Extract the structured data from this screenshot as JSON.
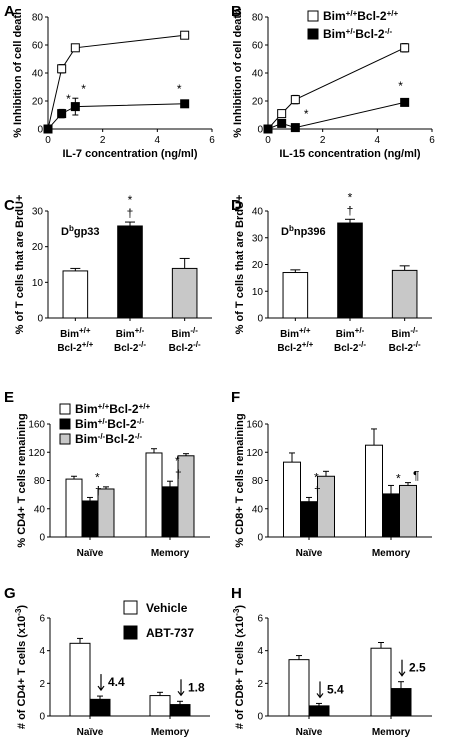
{
  "chart_data": [
    {
      "panel": "A",
      "type": "line",
      "xlabel": "IL-7 concentration (ng/ml)",
      "ylabel": "% Inhibition of cell death",
      "xlim": [
        0,
        6
      ],
      "ylim": [
        0,
        80
      ],
      "xticks": [
        0,
        2,
        4,
        6
      ],
      "yticks": [
        0,
        20,
        40,
        60,
        80
      ],
      "series": [
        {
          "fill": "#ffffff",
          "x": [
            0,
            0.5,
            1,
            5
          ],
          "y": [
            0,
            43,
            58,
            67
          ],
          "err": [
            0,
            3,
            2,
            2
          ]
        },
        {
          "fill": "#000000",
          "x": [
            0,
            0.5,
            1,
            5
          ],
          "y": [
            0,
            11,
            16,
            18
          ],
          "err": [
            0,
            3,
            6,
            2
          ]
        }
      ],
      "annotations": [
        {
          "text": "*",
          "x": 0.75,
          "y": 23
        },
        {
          "text": "*",
          "x": 1.3,
          "y": 30
        },
        {
          "text": "*",
          "x": 4.8,
          "y": 30
        }
      ]
    },
    {
      "panel": "B",
      "type": "line",
      "xlabel": "IL-15 concentration (ng/ml)",
      "ylabel": "% Inhibition of cell death",
      "xlim": [
        0,
        6
      ],
      "ylim": [
        0,
        80
      ],
      "xticks": [
        0,
        2,
        4,
        6
      ],
      "yticks": [
        0,
        20,
        40,
        60,
        80
      ],
      "legend": [
        "Bim+/+Bcl-2+/+",
        "Bim+/-Bcl-2-/-"
      ],
      "legend_colors": [
        "#ffffff",
        "#000000"
      ],
      "series": [
        {
          "name": "Bim+/+Bcl-2+/+",
          "fill": "#ffffff",
          "x": [
            0,
            0.5,
            1,
            5
          ],
          "y": [
            0,
            11,
            21,
            58
          ],
          "err": [
            0,
            2,
            3,
            3
          ]
        },
        {
          "name": "Bim+/-Bcl-2-/-",
          "fill": "#000000",
          "x": [
            0,
            0.5,
            1,
            5
          ],
          "y": [
            0,
            4,
            1,
            19
          ],
          "err": [
            0,
            1,
            1,
            2
          ]
        }
      ],
      "annotations": [
        {
          "text": "*",
          "x": 1.4,
          "y": 12
        },
        {
          "text": "*",
          "x": 4.85,
          "y": 32
        }
      ]
    },
    {
      "panel": "C",
      "type": "bar",
      "inner_label": "Dbgp33",
      "ylabel": "% of T cells that are BrdU+",
      "ylim": [
        0,
        30
      ],
      "yticks": [
        0,
        10,
        20,
        30
      ],
      "categories": [
        [
          "Bim+/+",
          "Bcl-2+/+"
        ],
        [
          "Bim+/-",
          "Bcl-2-/-"
        ],
        [
          "Bim-/-",
          "Bcl-2-/-"
        ]
      ],
      "values": [
        13.2,
        25.8,
        13.9
      ],
      "errors": [
        0.7,
        1.1,
        2.8
      ],
      "colors": [
        "#ffffff",
        "#000000",
        "#c8c8c8"
      ],
      "annotations": [
        {
          "text": "*",
          "bar": 1,
          "row": 1
        },
        {
          "text": "†",
          "bar": 1,
          "row": 0
        }
      ]
    },
    {
      "panel": "D",
      "type": "bar",
      "inner_label": "Dbnp396",
      "ylabel": "% of T cells that are BrdU+",
      "ylim": [
        0,
        40
      ],
      "yticks": [
        0,
        10,
        20,
        30,
        40
      ],
      "categories": [
        [
          "Bim+/+",
          "Bcl-2+/+"
        ],
        [
          "Bim+/-",
          "Bcl-2-/-"
        ],
        [
          "Bim-/-",
          "Bcl-2-/-"
        ]
      ],
      "values": [
        17.0,
        35.5,
        17.8
      ],
      "errors": [
        1.0,
        1.4,
        1.7
      ],
      "colors": [
        "#ffffff",
        "#000000",
        "#c8c8c8"
      ],
      "annotations": [
        {
          "text": "*",
          "bar": 1,
          "row": 1
        },
        {
          "text": "†",
          "bar": 1,
          "row": 0
        }
      ]
    },
    {
      "panel": "E",
      "type": "bar",
      "ylabel": "% CD4+ T cells remaining",
      "ylim": [
        0,
        160
      ],
      "yticks": [
        0,
        40,
        80,
        120,
        160
      ],
      "categories": [
        "Naïve",
        "Memory"
      ],
      "legend": [
        "Bim+/+Bcl-2+/+",
        "Bim+/-Bcl-2-/-",
        "Bim-/-Bcl-2-/-"
      ],
      "series": [
        {
          "name": "Bim+/+Bcl-2+/+",
          "color": "#ffffff",
          "values": [
            82,
            119
          ],
          "errors": [
            4,
            6
          ]
        },
        {
          "name": "Bim+/-Bcl-2-/-",
          "color": "#000000",
          "values": [
            51,
            71
          ],
          "errors": [
            5,
            8
          ]
        },
        {
          "name": "Bim-/-Bcl-2-/-",
          "color": "#c8c8c8",
          "values": [
            68,
            115
          ],
          "errors": [
            3,
            3
          ]
        }
      ],
      "annotations": [
        {
          "text": "*",
          "group": 0,
          "series": 1,
          "row": 1
        },
        {
          "text": "†",
          "group": 0,
          "series": 1,
          "row": 0
        },
        {
          "text": "*",
          "group": 1,
          "series": 1,
          "row": 1
        },
        {
          "text": "†",
          "group": 1,
          "series": 1,
          "row": 0
        }
      ]
    },
    {
      "panel": "F",
      "type": "bar",
      "ylabel": "% CD8+ T cells remaining",
      "ylim": [
        0,
        160
      ],
      "yticks": [
        0,
        40,
        80,
        120,
        160
      ],
      "categories": [
        "Naïve",
        "Memory"
      ],
      "series": [
        {
          "color": "#ffffff",
          "values": [
            106,
            130
          ],
          "errors": [
            13,
            23
          ]
        },
        {
          "color": "#000000",
          "values": [
            50,
            61
          ],
          "errors": [
            6,
            12
          ]
        },
        {
          "color": "#c8c8c8",
          "values": [
            86,
            73
          ],
          "errors": [
            7,
            4
          ]
        }
      ],
      "annotations": [
        {
          "text": "*",
          "group": 0,
          "series": 1,
          "row": 1
        },
        {
          "text": "†",
          "group": 0,
          "series": 1,
          "row": 0
        },
        {
          "text": "*",
          "group": 1,
          "series": 1,
          "row": 0
        },
        {
          "text": "¶",
          "group": 1,
          "series": 2,
          "row": 0
        }
      ]
    },
    {
      "panel": "G",
      "type": "bar",
      "ylabel": "# of CD4+ T cells (x10-3)",
      "ylim": [
        0,
        6
      ],
      "yticks": [
        0,
        2,
        4,
        6
      ],
      "categories": [
        "Naïve",
        "Memory"
      ],
      "legend": [
        "Vehicle",
        "ABT-737"
      ],
      "series": [
        {
          "name": "Vehicle",
          "color": "#ffffff",
          "values": [
            4.45,
            1.25
          ],
          "errors": [
            0.3,
            0.2
          ]
        },
        {
          "name": "ABT-737",
          "color": "#000000",
          "values": [
            1.02,
            0.7
          ],
          "errors": [
            0.2,
            0.2
          ]
        }
      ],
      "fold_labels": [
        "4.4",
        "1.8"
      ]
    },
    {
      "panel": "H",
      "type": "bar",
      "ylabel": "# of CD8+ T cells (x10-3)",
      "ylim": [
        0,
        6
      ],
      "yticks": [
        0,
        2,
        4,
        6
      ],
      "categories": [
        "Naïve",
        "Memory"
      ],
      "series": [
        {
          "color": "#ffffff",
          "values": [
            3.45,
            4.15
          ],
          "errors": [
            0.25,
            0.35
          ]
        },
        {
          "color": "#000000",
          "values": [
            0.62,
            1.68
          ],
          "errors": [
            0.15,
            0.42
          ]
        }
      ],
      "fold_labels": [
        "5.4",
        "2.5"
      ]
    }
  ]
}
